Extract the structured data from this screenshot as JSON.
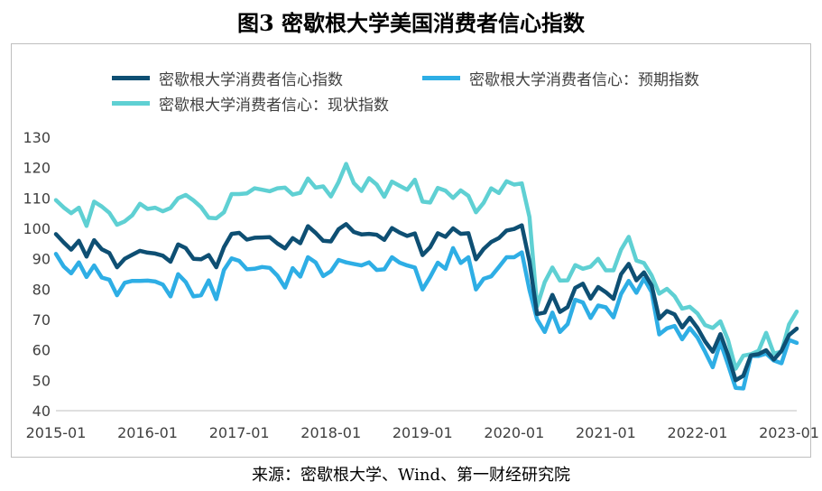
{
  "title": "图3 密歇根大学美国消费者信心指数",
  "source": "来源：密歇根大学、Wind、第一财经研究院",
  "chart_data": {
    "type": "line",
    "title": "图3 密歇根大学美国消费者信心指数",
    "xlabel": "",
    "ylabel": "",
    "ylim": [
      40,
      130
    ],
    "yticks": [
      40,
      50,
      60,
      70,
      80,
      90,
      100,
      110,
      120,
      130
    ],
    "xtick_labels": [
      "2015-01",
      "2016-01",
      "2017-01",
      "2018-01",
      "2019-01",
      "2020-01",
      "2021-01",
      "2022-01",
      "2023-01"
    ],
    "x_start": "2015-01",
    "x_end": "2023-02",
    "grid": false,
    "legend_position": "top",
    "series": [
      {
        "name": "密歇根大学消费者信心指数",
        "color": "#0e4f73",
        "values": [
          98.1,
          95.4,
          93.0,
          95.9,
          90.7,
          96.1,
          93.1,
          91.9,
          87.2,
          90.0,
          91.3,
          92.6,
          92.0,
          91.7,
          91.0,
          89.0,
          94.7,
          93.5,
          90.0,
          89.8,
          91.2,
          87.2,
          93.8,
          98.2,
          98.5,
          96.3,
          96.9,
          97.0,
          97.1,
          95.0,
          93.4,
          96.8,
          95.1,
          100.7,
          98.5,
          95.9,
          95.7,
          99.7,
          101.4,
          98.8,
          98.0,
          98.2,
          97.9,
          96.2,
          100.1,
          98.6,
          97.5,
          98.3,
          91.2,
          93.8,
          98.4,
          97.2,
          100.0,
          98.2,
          98.4,
          89.8,
          93.2,
          95.5,
          96.8,
          99.3,
          99.8,
          101.0,
          89.1,
          71.8,
          72.3,
          78.1,
          72.5,
          74.1,
          80.4,
          81.8,
          76.9,
          80.7,
          79.0,
          76.8,
          84.9,
          88.3,
          82.9,
          85.5,
          81.2,
          70.3,
          72.8,
          71.7,
          67.4,
          70.6,
          67.2,
          62.8,
          59.4,
          65.2,
          58.4,
          50.0,
          51.5,
          58.2,
          58.6,
          59.9,
          56.8,
          59.7,
          64.9,
          67.0
        ]
      },
      {
        "name": "密歇根大学消费者信心：预期指数",
        "color": "#2eaee5",
        "values": [
          91.6,
          87.5,
          85.2,
          88.8,
          84.0,
          87.8,
          83.8,
          83.1,
          78.0,
          82.1,
          82.7,
          82.7,
          82.8,
          82.5,
          81.5,
          77.6,
          84.9,
          82.3,
          77.6,
          78.0,
          82.9,
          76.7,
          86.3,
          90.1,
          89.3,
          86.5,
          86.7,
          87.3,
          87.0,
          84.4,
          80.5,
          86.9,
          84.1,
          90.5,
          88.8,
          84.3,
          85.9,
          89.6,
          88.8,
          88.3,
          87.8,
          88.8,
          86.3,
          86.5,
          90.5,
          88.7,
          87.8,
          87.1,
          79.9,
          84.0,
          88.7,
          86.7,
          93.5,
          88.6,
          90.5,
          79.9,
          83.4,
          84.2,
          87.3,
          90.5,
          90.5,
          92.1,
          79.7,
          70.1,
          65.9,
          72.3,
          65.9,
          68.5,
          76.5,
          75.6,
          70.5,
          74.6,
          74.0,
          70.7,
          78.4,
          82.7,
          78.8,
          83.5,
          79.0,
          65.1,
          67.1,
          67.9,
          63.5,
          67.2,
          64.1,
          59.4,
          54.3,
          62.5,
          55.2,
          47.5,
          47.3,
          58.0,
          58.0,
          58.8,
          56.5,
          55.6,
          63.3,
          62.3
        ]
      },
      {
        "name": "密歇根大学消费者信心：现状指数",
        "color": "#5fd0d3",
        "values": [
          109.3,
          106.9,
          105.0,
          106.8,
          100.8,
          108.8,
          107.2,
          105.1,
          101.2,
          102.3,
          104.3,
          108.1,
          106.4,
          106.8,
          105.6,
          106.7,
          109.9,
          111.0,
          109.2,
          107.0,
          103.5,
          103.3,
          105.3,
          111.3,
          111.3,
          111.5,
          113.2,
          112.7,
          112.2,
          113.2,
          113.4,
          111.1,
          111.7,
          116.4,
          113.4,
          113.8,
          110.5,
          115.2,
          121.2,
          114.9,
          112.3,
          116.5,
          114.4,
          110.4,
          115.4,
          114.0,
          112.7,
          116.0,
          108.8,
          108.5,
          113.3,
          112.4,
          110.0,
          112.5,
          110.7,
          105.3,
          108.4,
          113.2,
          111.6,
          115.5,
          114.4,
          114.8,
          103.7,
          74.3,
          82.3,
          87.1,
          82.8,
          82.9,
          87.9,
          86.7,
          87.4,
          90.0,
          86.2,
          86.2,
          93.0,
          97.2,
          89.4,
          88.6,
          84.5,
          78.5,
          80.1,
          77.7,
          73.6,
          74.2,
          72.0,
          68.2,
          67.2,
          69.4,
          63.3,
          53.8,
          58.1,
          58.6,
          59.7,
          65.6,
          58.8,
          59.4,
          68.4,
          72.6
        ]
      }
    ]
  }
}
